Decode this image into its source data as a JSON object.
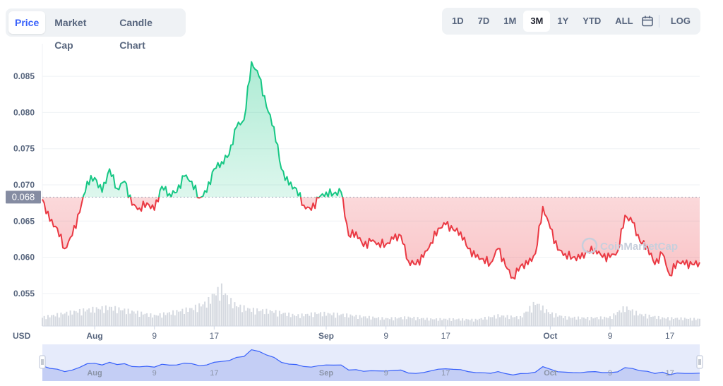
{
  "tabs": [
    {
      "label": "Price",
      "active": true
    },
    {
      "label": "Market Cap",
      "active": false
    },
    {
      "label": "Candle Chart",
      "active": false
    }
  ],
  "ranges": [
    {
      "label": "1D",
      "active": false
    },
    {
      "label": "7D",
      "active": false
    },
    {
      "label": "1M",
      "active": false
    },
    {
      "label": "3M",
      "active": true
    },
    {
      "label": "1Y",
      "active": false
    },
    {
      "label": "YTD",
      "active": false
    },
    {
      "label": "ALL",
      "active": false
    }
  ],
  "calendar_icon": "calendar-icon",
  "log_label": "LOG",
  "currency_label": "USD",
  "current_price_label": "0.068",
  "watermark": "CoinMarketCap",
  "colors": {
    "up": "#16c784",
    "down": "#ea3943",
    "accent": "#3861fb",
    "grid": "#eff2f5",
    "text": "#58667e"
  },
  "chart_data": {
    "type": "line",
    "title": "",
    "xlabel": "",
    "ylabel": "",
    "currency": "USD",
    "baseline": 0.0683,
    "ylim": [
      0.0505,
      0.0895
    ],
    "yticks": [
      0.055,
      0.06,
      0.065,
      0.07,
      0.075,
      0.08,
      0.085
    ],
    "ytick_labels": [
      "0.055",
      "0.060",
      "0.065",
      "0.070",
      "0.075",
      "0.080",
      "0.085"
    ],
    "x_start": "2023-07-25",
    "x_end": "2023-10-21",
    "xticks": [
      {
        "date": "2023-08-01",
        "label": "Aug",
        "bold": true
      },
      {
        "date": "2023-08-09",
        "label": "9",
        "bold": false
      },
      {
        "date": "2023-08-17",
        "label": "17",
        "bold": false
      },
      {
        "date": "2023-09-01",
        "label": "Sep",
        "bold": true
      },
      {
        "date": "2023-09-09",
        "label": "9",
        "bold": false
      },
      {
        "date": "2023-09-17",
        "label": "17",
        "bold": false
      },
      {
        "date": "2023-10-01",
        "label": "Oct",
        "bold": true
      },
      {
        "date": "2023-10-09",
        "label": "9",
        "bold": false
      },
      {
        "date": "2023-10-17",
        "label": "17",
        "bold": false
      }
    ],
    "series": [
      {
        "points": [
          [
            "2023-07-25",
            0.068
          ],
          [
            "2023-07-26",
            0.065
          ],
          [
            "2023-07-27",
            0.064
          ],
          [
            "2023-07-28",
            0.0612
          ],
          [
            "2023-07-29",
            0.063
          ],
          [
            "2023-07-30",
            0.0662
          ],
          [
            "2023-07-31",
            0.0705
          ],
          [
            "2023-08-01",
            0.071
          ],
          [
            "2023-08-02",
            0.069
          ],
          [
            "2023-08-03",
            0.0722
          ],
          [
            "2023-08-04",
            0.0695
          ],
          [
            "2023-08-05",
            0.0705
          ],
          [
            "2023-08-06",
            0.0672
          ],
          [
            "2023-08-07",
            0.0668
          ],
          [
            "2023-08-08",
            0.0675
          ],
          [
            "2023-08-09",
            0.0665
          ],
          [
            "2023-08-10",
            0.0698
          ],
          [
            "2023-08-11",
            0.0688
          ],
          [
            "2023-08-12",
            0.069
          ],
          [
            "2023-08-13",
            0.0712
          ],
          [
            "2023-08-14",
            0.0705
          ],
          [
            "2023-08-15",
            0.0682
          ],
          [
            "2023-08-16",
            0.069
          ],
          [
            "2023-08-17",
            0.0722
          ],
          [
            "2023-08-18",
            0.0732
          ],
          [
            "2023-08-19",
            0.0742
          ],
          [
            "2023-08-20",
            0.078
          ],
          [
            "2023-08-21",
            0.079
          ],
          [
            "2023-08-22",
            0.087
          ],
          [
            "2023-08-23",
            0.085
          ],
          [
            "2023-08-24",
            0.0808
          ],
          [
            "2023-08-25",
            0.078
          ],
          [
            "2023-08-26",
            0.0722
          ],
          [
            "2023-08-27",
            0.07
          ],
          [
            "2023-08-28",
            0.0695
          ],
          [
            "2023-08-29",
            0.0672
          ],
          [
            "2023-08-30",
            0.0665
          ],
          [
            "2023-08-31",
            0.0682
          ],
          [
            "2023-09-01",
            0.069
          ],
          [
            "2023-09-02",
            0.0688
          ],
          [
            "2023-09-03",
            0.069
          ],
          [
            "2023-09-04",
            0.063
          ],
          [
            "2023-09-05",
            0.0635
          ],
          [
            "2023-09-06",
            0.0615
          ],
          [
            "2023-09-07",
            0.0622
          ],
          [
            "2023-09-08",
            0.062
          ],
          [
            "2023-09-09",
            0.0618
          ],
          [
            "2023-09-10",
            0.0625
          ],
          [
            "2023-09-11",
            0.063
          ],
          [
            "2023-09-12",
            0.0595
          ],
          [
            "2023-09-13",
            0.059
          ],
          [
            "2023-09-14",
            0.06
          ],
          [
            "2023-09-15",
            0.062
          ],
          [
            "2023-09-16",
            0.064
          ],
          [
            "2023-09-17",
            0.0645
          ],
          [
            "2023-09-18",
            0.0638
          ],
          [
            "2023-09-19",
            0.0635
          ],
          [
            "2023-09-20",
            0.0612
          ],
          [
            "2023-09-21",
            0.06
          ],
          [
            "2023-09-22",
            0.0598
          ],
          [
            "2023-09-23",
            0.0592
          ],
          [
            "2023-09-24",
            0.0612
          ],
          [
            "2023-09-25",
            0.0588
          ],
          [
            "2023-09-26",
            0.0572
          ],
          [
            "2023-09-27",
            0.0588
          ],
          [
            "2023-09-28",
            0.059
          ],
          [
            "2023-09-29",
            0.0605
          ],
          [
            "2023-09-30",
            0.067
          ],
          [
            "2023-10-01",
            0.064
          ],
          [
            "2023-10-02",
            0.061
          ],
          [
            "2023-10-03",
            0.0605
          ],
          [
            "2023-10-04",
            0.06
          ],
          [
            "2023-10-05",
            0.0598
          ],
          [
            "2023-10-06",
            0.0608
          ],
          [
            "2023-10-07",
            0.0612
          ],
          [
            "2023-10-08",
            0.06
          ],
          [
            "2023-10-09",
            0.06
          ],
          [
            "2023-10-10",
            0.0608
          ],
          [
            "2023-10-11",
            0.0658
          ],
          [
            "2023-10-12",
            0.0648
          ],
          [
            "2023-10-13",
            0.0622
          ],
          [
            "2023-10-14",
            0.0615
          ],
          [
            "2023-10-15",
            0.059
          ],
          [
            "2023-10-16",
            0.0605
          ],
          [
            "2023-10-17",
            0.0575
          ],
          [
            "2023-10-18",
            0.0595
          ],
          [
            "2023-10-19",
            0.059
          ],
          [
            "2023-10-20",
            0.059
          ],
          [
            "2023-10-21",
            0.0593
          ]
        ]
      }
    ],
    "volume": [
      [
        "2023-07-25",
        0.15
      ],
      [
        "2023-07-28",
        0.22
      ],
      [
        "2023-07-31",
        0.28
      ],
      [
        "2023-08-03",
        0.32
      ],
      [
        "2023-08-06",
        0.25
      ],
      [
        "2023-08-09",
        0.18
      ],
      [
        "2023-08-12",
        0.25
      ],
      [
        "2023-08-14",
        0.3
      ],
      [
        "2023-08-16",
        0.4
      ],
      [
        "2023-08-17",
        0.55
      ],
      [
        "2023-08-18",
        0.65
      ],
      [
        "2023-08-19",
        0.45
      ],
      [
        "2023-08-20",
        0.35
      ],
      [
        "2023-08-22",
        0.28
      ],
      [
        "2023-08-25",
        0.25
      ],
      [
        "2023-08-28",
        0.18
      ],
      [
        "2023-08-31",
        0.22
      ],
      [
        "2023-09-03",
        0.2
      ],
      [
        "2023-09-06",
        0.16
      ],
      [
        "2023-09-09",
        0.13
      ],
      [
        "2023-09-12",
        0.15
      ],
      [
        "2023-09-15",
        0.12
      ],
      [
        "2023-09-18",
        0.12
      ],
      [
        "2023-09-21",
        0.11
      ],
      [
        "2023-09-24",
        0.18
      ],
      [
        "2023-09-27",
        0.15
      ],
      [
        "2023-09-29",
        0.4
      ],
      [
        "2023-10-01",
        0.22
      ],
      [
        "2023-10-03",
        0.15
      ],
      [
        "2023-10-06",
        0.14
      ],
      [
        "2023-10-09",
        0.15
      ],
      [
        "2023-10-11",
        0.32
      ],
      [
        "2023-10-13",
        0.2
      ],
      [
        "2023-10-16",
        0.14
      ],
      [
        "2023-10-19",
        0.13
      ],
      [
        "2023-10-21",
        0.12
      ]
    ],
    "grid": true
  }
}
